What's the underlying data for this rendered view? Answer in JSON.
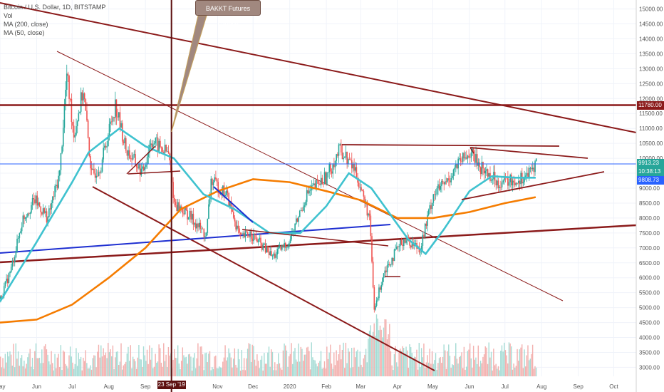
{
  "legend": {
    "symbol": "Bitcoin / U.S. Dollar, 1D, BITSTAMP",
    "vol": "Vol",
    "ma200": "MA (200, close)",
    "ma50": "MA (50, close)"
  },
  "annotation": {
    "text": "BAKKT Futures Launch",
    "marker_label": "23 Sep '19"
  },
  "price_tags": {
    "resistance": "11780.00",
    "last": "9913.23",
    "countdown": "10:38:13",
    "ma_value": "9808.73"
  },
  "colors": {
    "up": "#26a69a",
    "down": "#ef5350",
    "ma50": "#3fc2cf",
    "ma200": "#f57c00",
    "trend": "#8b1a1a",
    "support_blue": "#1e2fd1",
    "price_line": "#2962ff",
    "volume": "#e57373"
  },
  "chart_data": {
    "type": "candlestick",
    "title": "Bitcoin / U.S. Dollar, 1D, BITSTAMP",
    "y_axis": {
      "ticks": [
        3000,
        3500,
        4000,
        4500,
        5000,
        5500,
        6000,
        6500,
        7000,
        7500,
        8000,
        8500,
        9000,
        9500,
        10000,
        10500,
        11000,
        11500,
        12000,
        12500,
        13000,
        13500,
        14000,
        14500,
        15000
      ],
      "tick_labels": [
        "3000.00",
        "3500.00",
        "4000.00",
        "4500.00",
        "5000.00",
        "5500.00",
        "6000.00",
        "6500.00",
        "7000.00",
        "7500.00",
        "8000.00",
        "8500.00",
        "9000.00",
        "9500.00",
        "10000.00",
        "10500.00",
        "11000.00",
        "11500.00",
        "12000.00",
        "12500.00",
        "13000.00",
        "13500.00",
        "14000.00",
        "14500.00",
        "15000.00"
      ],
      "range": [
        2700,
        15300
      ]
    },
    "x_axis": {
      "range": [
        "2019-05-01",
        "2020-10-20"
      ],
      "ticks": [
        {
          "date": "2019-05-01",
          "label": "May"
        },
        {
          "date": "2019-06-01",
          "label": "Jun"
        },
        {
          "date": "2019-07-01",
          "label": "Jul"
        },
        {
          "date": "2019-08-01",
          "label": "Aug"
        },
        {
          "date": "2019-09-01",
          "label": "Sep"
        },
        {
          "date": "2019-11-01",
          "label": "Nov"
        },
        {
          "date": "2019-12-01",
          "label": "Dec"
        },
        {
          "date": "2020-01-01",
          "label": "2020"
        },
        {
          "date": "2020-02-01",
          "label": "Feb"
        },
        {
          "date": "2020-03-01",
          "label": "Mar"
        },
        {
          "date": "2020-04-01",
          "label": "Apr"
        },
        {
          "date": "2020-05-01",
          "label": "May"
        },
        {
          "date": "2020-06-01",
          "label": "Jun"
        },
        {
          "date": "2020-07-01",
          "label": "Jul"
        },
        {
          "date": "2020-08-01",
          "label": "Aug"
        },
        {
          "date": "2020-09-01",
          "label": "Sep"
        },
        {
          "date": "2020-10-01",
          "label": "Oct"
        }
      ]
    },
    "price_series": [
      {
        "date": "2019-05-01",
        "close": 5300
      },
      {
        "date": "2019-05-10",
        "close": 6300
      },
      {
        "date": "2019-05-20",
        "close": 8000
      },
      {
        "date": "2019-05-30",
        "close": 8600
      },
      {
        "date": "2019-06-10",
        "close": 8000
      },
      {
        "date": "2019-06-20",
        "close": 9500
      },
      {
        "date": "2019-06-26",
        "close": 12800
      },
      {
        "date": "2019-07-02",
        "close": 10800
      },
      {
        "date": "2019-07-10",
        "close": 12300
      },
      {
        "date": "2019-07-17",
        "close": 9400
      },
      {
        "date": "2019-07-25",
        "close": 9800
      },
      {
        "date": "2019-08-06",
        "close": 11800
      },
      {
        "date": "2019-08-15",
        "close": 10300
      },
      {
        "date": "2019-08-29",
        "close": 9500
      },
      {
        "date": "2019-09-05",
        "close": 10600
      },
      {
        "date": "2019-09-20",
        "close": 10150
      },
      {
        "date": "2019-09-25",
        "close": 8500
      },
      {
        "date": "2019-10-07",
        "close": 8100
      },
      {
        "date": "2019-10-22",
        "close": 7400
      },
      {
        "date": "2019-10-26",
        "close": 9250
      },
      {
        "date": "2019-11-08",
        "close": 8800
      },
      {
        "date": "2019-11-20",
        "close": 7300
      },
      {
        "date": "2019-11-28",
        "close": 7500
      },
      {
        "date": "2019-12-17",
        "close": 6700
      },
      {
        "date": "2019-12-31",
        "close": 7200
      },
      {
        "date": "2020-01-15",
        "close": 8800
      },
      {
        "date": "2020-02-01",
        "close": 9400
      },
      {
        "date": "2020-02-12",
        "close": 10300
      },
      {
        "date": "2020-02-25",
        "close": 9600
      },
      {
        "date": "2020-03-08",
        "close": 8000
      },
      {
        "date": "2020-03-12",
        "close": 4900
      },
      {
        "date": "2020-03-20",
        "close": 6200
      },
      {
        "date": "2020-04-06",
        "close": 7300
      },
      {
        "date": "2020-04-20",
        "close": 7000
      },
      {
        "date": "2020-05-01",
        "close": 8800
      },
      {
        "date": "2020-05-12",
        "close": 9200
      },
      {
        "date": "2020-05-20",
        "close": 9700
      },
      {
        "date": "2020-06-01",
        "close": 10200
      },
      {
        "date": "2020-06-10",
        "close": 9700
      },
      {
        "date": "2020-06-25",
        "close": 9200
      },
      {
        "date": "2020-07-10",
        "close": 9250
      },
      {
        "date": "2020-07-22",
        "close": 9500
      },
      {
        "date": "2020-07-27",
        "close": 9913
      }
    ],
    "ma50_series": [
      {
        "date": "2019-05-01",
        "value": 5200
      },
      {
        "date": "2019-06-01",
        "value": 7200
      },
      {
        "date": "2019-07-01",
        "value": 9200
      },
      {
        "date": "2019-07-15",
        "value": 10200
      },
      {
        "date": "2019-08-10",
        "value": 11000
      },
      {
        "date": "2019-09-01",
        "value": 10400
      },
      {
        "date": "2019-09-25",
        "value": 10000
      },
      {
        "date": "2019-10-20",
        "value": 8800
      },
      {
        "date": "2019-11-15",
        "value": 8300
      },
      {
        "date": "2019-12-15",
        "value": 7500
      },
      {
        "date": "2020-01-10",
        "value": 7500
      },
      {
        "date": "2020-02-01",
        "value": 8400
      },
      {
        "date": "2020-02-20",
        "value": 9500
      },
      {
        "date": "2020-03-10",
        "value": 9000
      },
      {
        "date": "2020-04-10",
        "value": 7300
      },
      {
        "date": "2020-04-25",
        "value": 6800
      },
      {
        "date": "2020-05-10",
        "value": 7600
      },
      {
        "date": "2020-06-01",
        "value": 8900
      },
      {
        "date": "2020-06-20",
        "value": 9400
      },
      {
        "date": "2020-07-10",
        "value": 9350
      },
      {
        "date": "2020-07-27",
        "value": 9350
      }
    ],
    "ma200_series": [
      {
        "date": "2019-05-01",
        "value": 4500
      },
      {
        "date": "2019-06-01",
        "value": 4600
      },
      {
        "date": "2019-07-01",
        "value": 5100
      },
      {
        "date": "2019-08-01",
        "value": 6000
      },
      {
        "date": "2019-09-01",
        "value": 7000
      },
      {
        "date": "2019-10-01",
        "value": 8300
      },
      {
        "date": "2019-11-01",
        "value": 8900
      },
      {
        "date": "2019-12-01",
        "value": 9300
      },
      {
        "date": "2020-01-01",
        "value": 9200
      },
      {
        "date": "2020-02-01",
        "value": 8900
      },
      {
        "date": "2020-03-01",
        "value": 8600
      },
      {
        "date": "2020-04-01",
        "value": 8000
      },
      {
        "date": "2020-05-01",
        "value": 8000
      },
      {
        "date": "2020-06-01",
        "value": 8200
      },
      {
        "date": "2020-07-01",
        "value": 8500
      },
      {
        "date": "2020-07-27",
        "value": 8700
      }
    ],
    "volume_note": "volume histogram at chart bottom",
    "horizontal_levels": [
      11780
    ],
    "event_marker": {
      "date": "2019-09-23",
      "label": "BAKKT Futures Launch"
    },
    "grid": true,
    "legend_position": "top-left"
  }
}
